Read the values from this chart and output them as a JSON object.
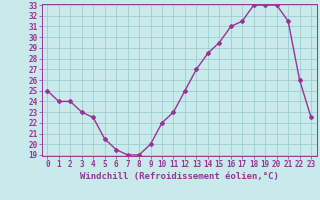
{
  "x": [
    0,
    1,
    2,
    3,
    4,
    5,
    6,
    7,
    8,
    9,
    10,
    11,
    12,
    13,
    14,
    15,
    16,
    17,
    18,
    19,
    20,
    21,
    22,
    23
  ],
  "y": [
    25,
    24,
    24,
    23,
    22.5,
    20.5,
    19.5,
    19,
    19,
    20,
    22,
    23,
    25,
    27,
    28.5,
    29.5,
    31,
    31.5,
    33,
    33,
    33,
    31.5,
    26,
    22.5
  ],
  "line_color": "#993399",
  "marker": "D",
  "marker_size": 2,
  "background_color": "#c8eaea",
  "grid_color": "#9ecece",
  "xlabel": "Windchill (Refroidissement éolien,°C)",
  "ylim": [
    19,
    33
  ],
  "xlim": [
    -0.5,
    23.5
  ],
  "yticks": [
    19,
    20,
    21,
    22,
    23,
    24,
    25,
    26,
    27,
    28,
    29,
    30,
    31,
    32,
    33
  ],
  "xticks": [
    0,
    1,
    2,
    3,
    4,
    5,
    6,
    7,
    8,
    9,
    10,
    11,
    12,
    13,
    14,
    15,
    16,
    17,
    18,
    19,
    20,
    21,
    22,
    23
  ],
  "tick_color": "#993399",
  "label_color": "#993399",
  "font_size": 5.5,
  "xlabel_fontsize": 6.5,
  "line_width": 1.0
}
